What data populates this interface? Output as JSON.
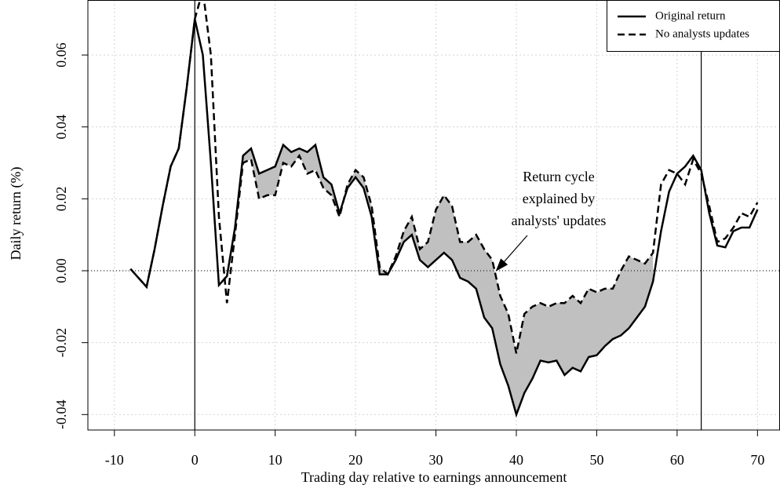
{
  "chart_data": {
    "type": "line",
    "x_label": "Trading day relative to earnings announcement",
    "y_label": "Daily return (%)",
    "x": [
      -8,
      -7,
      -6,
      -5,
      -4,
      -3,
      -2,
      -1,
      0,
      1,
      2,
      3,
      4,
      5,
      6,
      7,
      8,
      9,
      10,
      11,
      12,
      13,
      14,
      15,
      16,
      17,
      18,
      19,
      20,
      21,
      22,
      23,
      24,
      25,
      26,
      27,
      28,
      29,
      30,
      31,
      32,
      33,
      34,
      35,
      36,
      37,
      38,
      39,
      40,
      41,
      42,
      43,
      44,
      45,
      46,
      47,
      48,
      49,
      50,
      51,
      52,
      53,
      54,
      55,
      56,
      57,
      58,
      59,
      60,
      61,
      62,
      63,
      64,
      65,
      66,
      67,
      68,
      69,
      70
    ],
    "series": [
      {
        "name": "Original return",
        "color": "#000000",
        "line_style": "solid",
        "values": [
          0.0005,
          -0.002,
          -0.0045,
          0.006,
          0.018,
          0.029,
          0.034,
          0.051,
          0.07,
          0.06,
          0.03,
          -0.004,
          -0.0015,
          0.012,
          0.032,
          0.034,
          0.027,
          0.028,
          0.029,
          0.035,
          0.033,
          0.034,
          0.033,
          0.035,
          0.026,
          0.024,
          0.016,
          0.023,
          0.026,
          0.023,
          0.015,
          -0.001,
          -0.001,
          0.003,
          0.008,
          0.01,
          0.003,
          0.001,
          0.003,
          0.005,
          0.003,
          -0.002,
          -0.003,
          -0.005,
          -0.013,
          -0.016,
          -0.026,
          -0.032,
          -0.04,
          -0.034,
          -0.03,
          -0.025,
          -0.0255,
          -0.025,
          -0.029,
          -0.027,
          -0.028,
          -0.024,
          -0.0235,
          -0.021,
          -0.019,
          -0.018,
          -0.016,
          -0.013,
          -0.01,
          -0.003,
          0.011,
          0.022,
          0.027,
          0.029,
          0.032,
          0.028,
          0.016,
          0.007,
          0.0065,
          0.011,
          0.012,
          0.012,
          0.017
        ]
      },
      {
        "name": "No analysts updates",
        "color": "#000000",
        "line_style": "dashed",
        "values": [
          0.0005,
          -0.002,
          -0.0045,
          0.006,
          0.018,
          0.029,
          0.034,
          0.051,
          0.07,
          0.078,
          0.06,
          0.015,
          -0.009,
          0.01,
          0.03,
          0.031,
          0.02,
          0.021,
          0.021,
          0.03,
          0.029,
          0.032,
          0.027,
          0.028,
          0.023,
          0.021,
          0.015,
          0.024,
          0.028,
          0.026,
          0.018,
          0.001,
          -0.001,
          0.004,
          0.011,
          0.015,
          0.006,
          0.008,
          0.017,
          0.021,
          0.018,
          0.008,
          0.008,
          0.01,
          0.006,
          0.003,
          -0.007,
          -0.012,
          -0.023,
          -0.012,
          -0.01,
          -0.009,
          -0.01,
          -0.009,
          -0.009,
          -0.007,
          -0.009,
          -0.005,
          -0.006,
          -0.005,
          -0.005,
          0,
          0.004,
          0.003,
          0.002,
          0.005,
          0.024,
          0.028,
          0.027,
          0.024,
          0.031,
          0.027,
          0.018,
          0.008,
          0.009,
          0.012,
          0.016,
          0.015,
          0.019
        ]
      }
    ],
    "shade": {
      "from": 6,
      "to": 57,
      "color": "#c0c0c0"
    },
    "vlines": [
      0,
      63
    ],
    "hline": 0,
    "annotation": {
      "lines": [
        "Return cycle",
        "explained by",
        "analysts' updates"
      ],
      "x": 37.5,
      "y": 0
    },
    "xlim": [
      -13.3,
      72.8
    ],
    "ylim": [
      -0.0443,
      0.0753
    ],
    "xticks": [
      -10,
      0,
      10,
      20,
      30,
      40,
      50,
      60,
      70
    ],
    "yticks": [
      -0.04,
      -0.02,
      {
        "value": 0,
        "label": "0.00"
      },
      0.02,
      0.04,
      0.06
    ],
    "grid": true,
    "legend": "top-right"
  }
}
